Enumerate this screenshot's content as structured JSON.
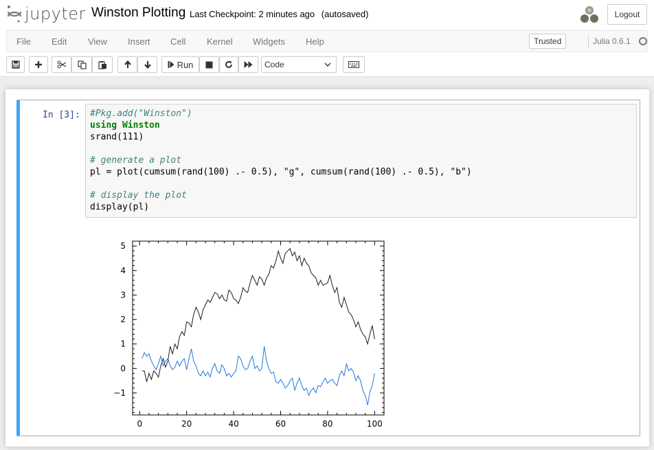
{
  "header": {
    "logo_text": "jupyter",
    "notebook_title": "Winston Plotting",
    "checkpoint_label": "Last Checkpoint:",
    "checkpoint_time": "2 minutes ago",
    "autosave": "(autosaved)",
    "logout_label": "Logout"
  },
  "menubar": {
    "items": [
      "File",
      "Edit",
      "View",
      "Insert",
      "Cell",
      "Kernel",
      "Widgets",
      "Help"
    ],
    "trusted_label": "Trusted",
    "kernel_name": "Julia 0.6.1"
  },
  "toolbar": {
    "run_label": "Run",
    "cell_type": "Code",
    "buttons": [
      "save-icon",
      "plus-icon",
      "cut-icon",
      "copy-icon",
      "paste-icon",
      "arrow-up-icon",
      "arrow-down-icon",
      "step-forward-icon",
      "stop-icon",
      "restart-icon",
      "fast-forward-icon",
      "keyboard-icon"
    ]
  },
  "cell": {
    "prompt": "In [3]:",
    "code_lines": [
      "#Pkg.add(\"Winston\")",
      "using Winston",
      "srand(111)",
      "",
      "# generate a plot",
      "pl = plot(cumsum(rand(100) .- 0.5), \"g\", cumsum(rand(100) .- 0.5), \"b\")",
      "",
      "# display the plot",
      "display(pl)"
    ]
  },
  "colors": {
    "cell_border_active": "#42a5f5",
    "prompt": "#303f9f",
    "series_1": "#1a1a1a",
    "series_2": "#1f77e0"
  },
  "chart_data": {
    "type": "line",
    "title": "",
    "xlabel": "",
    "ylabel": "",
    "xlim": [
      -3,
      104
    ],
    "ylim": [
      -1.9,
      5.2
    ],
    "xticks": [
      0,
      20,
      40,
      60,
      80,
      100
    ],
    "yticks": [
      -1,
      0,
      1,
      2,
      3,
      4,
      5
    ],
    "grid": false,
    "series": [
      {
        "color": "#1a1a1a",
        "x": [
          1,
          2,
          3,
          4,
          5,
          6,
          7,
          8,
          9,
          10,
          11,
          12,
          13,
          14,
          15,
          16,
          17,
          18,
          19,
          20,
          21,
          22,
          23,
          24,
          25,
          26,
          27,
          28,
          29,
          30,
          31,
          32,
          33,
          34,
          35,
          36,
          37,
          38,
          39,
          40,
          41,
          42,
          43,
          44,
          45,
          46,
          47,
          48,
          49,
          50,
          51,
          52,
          53,
          54,
          55,
          56,
          57,
          58,
          59,
          60,
          61,
          62,
          63,
          64,
          65,
          66,
          67,
          68,
          69,
          70,
          71,
          72,
          73,
          74,
          75,
          76,
          77,
          78,
          79,
          80,
          81,
          82,
          83,
          84,
          85,
          86,
          87,
          88,
          89,
          90,
          91,
          92,
          93,
          94,
          95,
          96,
          97,
          98,
          99,
          100
        ],
        "y": [
          -0.1,
          -0.1,
          -0.55,
          -0.2,
          -0.45,
          -0.1,
          -0.2,
          -0.35,
          0.1,
          0.4,
          0.05,
          0.3,
          0.9,
          0.6,
          1.0,
          0.8,
          1.3,
          1.5,
          1.35,
          1.9,
          1.85,
          1.7,
          2.2,
          2.5,
          2.3,
          2.0,
          2.4,
          2.6,
          2.8,
          2.7,
          2.9,
          3.1,
          3.05,
          2.85,
          3.0,
          2.8,
          2.75,
          3.2,
          3.1,
          2.85,
          2.8,
          2.65,
          2.9,
          3.3,
          3.15,
          3.1,
          3.5,
          3.8,
          3.6,
          3.4,
          3.75,
          3.65,
          3.4,
          3.7,
          3.85,
          4.2,
          4.1,
          4.4,
          4.8,
          4.5,
          4.3,
          4.7,
          4.8,
          4.9,
          4.6,
          4.75,
          4.4,
          4.6,
          4.2,
          4.5,
          4.3,
          4.2,
          3.9,
          3.8,
          3.7,
          3.4,
          3.6,
          3.4,
          3.45,
          3.5,
          3.8,
          3.4,
          3.1,
          3.3,
          2.7,
          2.5,
          2.9,
          2.6,
          2.3,
          2.2,
          2.0,
          1.7,
          1.9,
          1.6,
          1.4,
          1.3,
          1.0,
          1.4,
          1.75,
          1.2
        ],
        "note_x_extent": "series spans roughly x=1..100 in the figure"
      },
      {
        "color": "#1f77e0",
        "x": [
          1,
          2,
          3,
          4,
          5,
          6,
          7,
          8,
          9,
          10,
          11,
          12,
          13,
          14,
          15,
          16,
          17,
          18,
          19,
          20,
          21,
          22,
          23,
          24,
          25,
          26,
          27,
          28,
          29,
          30,
          31,
          32,
          33,
          34,
          35,
          36,
          37,
          38,
          39,
          40,
          41,
          42,
          43,
          44,
          45,
          46,
          47,
          48,
          49,
          50,
          51,
          52,
          53,
          54,
          55,
          56,
          57,
          58,
          59,
          60,
          61,
          62,
          63,
          64,
          65,
          66,
          67,
          68,
          69,
          70,
          71,
          72,
          73,
          74,
          75,
          76,
          77,
          78,
          79,
          80,
          81,
          82,
          83,
          84,
          85,
          86,
          87,
          88,
          89,
          90,
          91,
          92,
          93,
          94,
          95,
          96,
          97,
          98,
          99,
          100
        ],
        "y": [
          0.4,
          0.65,
          0.5,
          0.6,
          0.3,
          0.1,
          -0.05,
          0.2,
          0.5,
          0.1,
          0.3,
          0.4,
          0.1,
          -0.05,
          0.05,
          0.3,
          0.1,
          0.3,
          0.4,
          -0.05,
          0.4,
          0.8,
          0.3,
          0.1,
          -0.2,
          -0.3,
          -0.1,
          -0.3,
          -0.15,
          -0.35,
          0.0,
          0.2,
          -0.1,
          -0.2,
          0.15,
          0.0,
          -0.3,
          -0.2,
          -0.35,
          -0.2,
          -0.1,
          0.5,
          0.4,
          0.1,
          -0.05,
          0.0,
          0.3,
          0.5,
          0.0,
          0.1,
          -0.1,
          0.0,
          0.9,
          0.3,
          0.0,
          -0.2,
          -0.15,
          -0.55,
          -0.6,
          -0.45,
          -0.6,
          -0.8,
          -0.7,
          -0.5,
          -0.4,
          -0.9,
          -0.6,
          -0.4,
          -0.7,
          -0.9,
          -0.8,
          -1.1,
          -0.9,
          -0.8,
          -1.0,
          -0.7,
          -0.75,
          -0.55,
          -0.4,
          -0.6,
          -0.5,
          -0.45,
          -0.6,
          -0.7,
          -0.3,
          -0.1,
          -0.3,
          0.2,
          -0.1,
          0.0,
          -0.15,
          -0.5,
          -0.3,
          -0.5,
          -0.9,
          -1.1,
          -1.5,
          -0.95,
          -0.7,
          -0.2
        ]
      }
    ]
  }
}
